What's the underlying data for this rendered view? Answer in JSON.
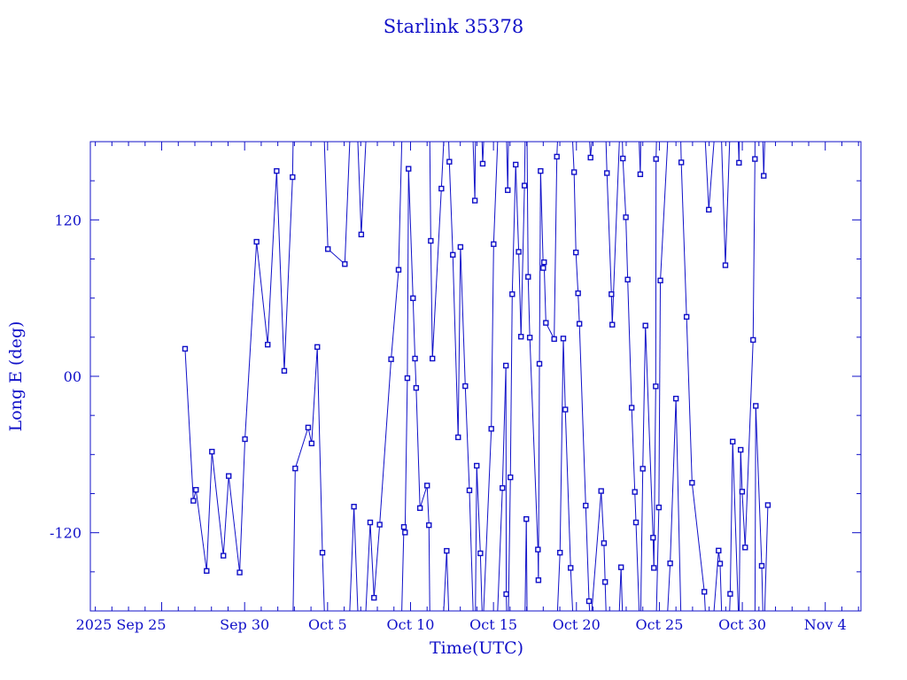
{
  "chart_data": {
    "type": "line",
    "title": "Starlink 35378",
    "xlabel": "Time(UTC)",
    "ylabel": "Long E (deg)",
    "x_units": "days since 2025 Sep 25 00:00 UTC",
    "xlim": [
      -4.3,
      42.15
    ],
    "ylim": [
      -180,
      180
    ],
    "grid": false,
    "color": "#1010c8",
    "markers": "square",
    "xticks": [
      {
        "value": 0,
        "label": "2025 Sep 25"
      },
      {
        "value": 5,
        "label": "Sep 30"
      },
      {
        "value": 10,
        "label": "Oct  5"
      },
      {
        "value": 15,
        "label": "Oct 10"
      },
      {
        "value": 20,
        "label": "Oct 15"
      },
      {
        "value": 25,
        "label": "Oct 20"
      },
      {
        "value": 30,
        "label": "Oct 25"
      },
      {
        "value": 35,
        "label": "Oct 30"
      },
      {
        "value": 40,
        "label": "Nov  4"
      }
    ],
    "yticks": [
      {
        "value": 120,
        "label": "120"
      },
      {
        "value": 0,
        "label": "00"
      },
      {
        "value": -120,
        "label": "-120"
      }
    ],
    "series": [
      {
        "name": "Starlink 35378",
        "points": [
          [
            1.41,
            21.1
          ],
          [
            1.91,
            -95.5
          ],
          [
            2.07,
            -87.1
          ],
          [
            2.71,
            -149.3
          ],
          [
            3.03,
            -57.8
          ],
          [
            3.72,
            -137.6
          ],
          [
            4.04,
            -76.5
          ],
          [
            4.7,
            -150.5
          ],
          [
            5.02,
            -48.2
          ],
          [
            5.72,
            103.2
          ],
          [
            6.39,
            24.3
          ],
          [
            6.93,
            157.5
          ],
          [
            7.39,
            4.2
          ],
          [
            7.89,
            152.8
          ],
          [
            8.05,
            -70.7
          ],
          [
            8.83,
            -39.3
          ],
          [
            9.04,
            -51.5
          ],
          [
            9.38,
            22.5
          ],
          [
            9.69,
            -135.3
          ],
          [
            10.02,
            97.6
          ],
          [
            11.04,
            86.1
          ],
          [
            11.59,
            -100
          ],
          [
            12.03,
            108.8
          ],
          [
            12.57,
            -112.1
          ],
          [
            12.8,
            -169.9
          ],
          [
            13.14,
            -113.8
          ],
          [
            13.83,
            13.1
          ],
          [
            14.28,
            81.7
          ],
          [
            14.6,
            -115.6
          ],
          [
            14.67,
            -119.8
          ],
          [
            14.81,
            -1.4
          ],
          [
            14.88,
            159.2
          ],
          [
            15.15,
            59.9
          ],
          [
            15.27,
            13.6
          ],
          [
            15.34,
            -8.9
          ],
          [
            15.57,
            -101.1
          ],
          [
            16.0,
            -83.8
          ],
          [
            16.11,
            -114.2
          ],
          [
            16.22,
            103.9
          ],
          [
            16.32,
            13.6
          ],
          [
            16.86,
            144
          ],
          [
            17.18,
            -133.9
          ],
          [
            17.34,
            164.6
          ],
          [
            17.55,
            93.2
          ],
          [
            17.87,
            -46.8
          ],
          [
            18.01,
            99.2
          ],
          [
            18.3,
            -7.5
          ],
          [
            18.55,
            -87.5
          ],
          [
            18.88,
            134.8
          ],
          [
            18.99,
            -68.6
          ],
          [
            19.21,
            -135.8
          ],
          [
            19.35,
            163.1
          ],
          [
            19.87,
            -40.3
          ],
          [
            20.01,
            101.4
          ],
          [
            20.54,
            -85.7
          ],
          [
            20.75,
            8.2
          ],
          [
            20.77,
            -167.1
          ],
          [
            20.86,
            142.8
          ],
          [
            21.02,
            -77.5
          ],
          [
            21.13,
            63
          ],
          [
            21.34,
            162.4
          ],
          [
            21.52,
            95.5
          ],
          [
            21.66,
            30.4
          ],
          [
            21.87,
            146.3
          ],
          [
            21.98,
            -109.5
          ],
          [
            22.09,
            76.3
          ],
          [
            22.19,
            29.7
          ],
          [
            22.68,
            -132.9
          ],
          [
            22.71,
            -156.4
          ],
          [
            22.77,
            9.6
          ],
          [
            22.84,
            157.5
          ],
          [
            23.0,
            83.1
          ],
          [
            23.05,
            87.5
          ],
          [
            23.16,
            41
          ],
          [
            23.66,
            28.6
          ],
          [
            23.82,
            168.5
          ],
          [
            24.01,
            -135.3
          ],
          [
            24.21,
            29
          ],
          [
            24.33,
            -25.5
          ],
          [
            24.65,
            -147
          ],
          [
            24.86,
            156.6
          ],
          [
            24.97,
            95
          ],
          [
            25.1,
            63.7
          ],
          [
            25.18,
            40.3
          ],
          [
            25.56,
            -99.2
          ],
          [
            25.76,
            -172.5
          ],
          [
            25.85,
            167.8
          ],
          [
            26.49,
            -88
          ],
          [
            26.66,
            -128
          ],
          [
            26.73,
            -157.8
          ],
          [
            26.84,
            155.9
          ],
          [
            27.11,
            63
          ],
          [
            27.16,
            39.6
          ],
          [
            27.69,
            -146.5
          ],
          [
            27.8,
            167.1
          ],
          [
            27.98,
            122
          ],
          [
            28.09,
            74.2
          ],
          [
            28.33,
            -24.1
          ],
          [
            28.52,
            -88.7
          ],
          [
            28.59,
            -112.1
          ],
          [
            28.85,
            155
          ],
          [
            29.0,
            -70.9
          ],
          [
            29.16,
            38.9
          ],
          [
            29.62,
            -123.8
          ],
          [
            29.67,
            -147
          ],
          [
            29.78,
            -7.7
          ],
          [
            29.8,
            166.7
          ],
          [
            29.97,
            -100.6
          ],
          [
            30.06,
            73.5
          ],
          [
            30.65,
            -143.5
          ],
          [
            31.0,
            -17.1
          ],
          [
            31.32,
            164.1
          ],
          [
            31.64,
            45.6
          ],
          [
            31.97,
            -81.7
          ],
          [
            32.71,
            -165.3
          ],
          [
            32.98,
            127.8
          ],
          [
            33.57,
            -133.7
          ],
          [
            33.66,
            -143.7
          ],
          [
            33.98,
            85.2
          ],
          [
            34.27,
            -166.9
          ],
          [
            34.42,
            -50.1
          ],
          [
            34.8,
            163.8
          ],
          [
            34.9,
            -56.4
          ],
          [
            34.99,
            -88.5
          ],
          [
            35.17,
            -131.3
          ],
          [
            35.65,
            27.9
          ],
          [
            35.76,
            166.7
          ],
          [
            35.81,
            -22.7
          ],
          [
            36.17,
            -145.4
          ],
          [
            36.29,
            153.8
          ],
          [
            36.54,
            -98.8
          ]
        ]
      }
    ]
  }
}
